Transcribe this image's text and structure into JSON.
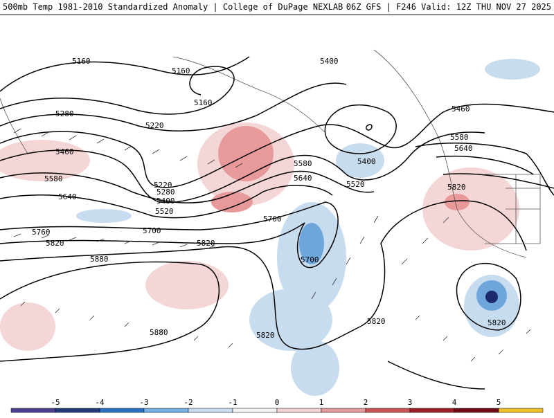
{
  "header": {
    "title_left": "500mb Temp 1981-2010 Standardized Anomaly | College of DuPage NEXLAB",
    "title_right": "06Z GFS | F246 Valid: 12Z THU NOV 27 2025"
  },
  "contours": {
    "color": "#000000",
    "labels": [
      "5160",
      "5160",
      "5160",
      "5220",
      "5280",
      "5220",
      "5280",
      "5400",
      "5520",
      "5460",
      "5580",
      "5640",
      "5760",
      "5700",
      "5820",
      "5820",
      "5880",
      "5880",
      "5400",
      "5400",
      "5520",
      "5580",
      "5640",
      "5760",
      "5700",
      "5820",
      "5820",
      "5460",
      "5580",
      "5640",
      "5820",
      "5820"
    ]
  },
  "anomaly_colors": {
    "neg_strong": "#2b5fb3",
    "neg_mid": "#6ea6dc",
    "neg_light": "#c8dcf0",
    "pos_light": "#f4d6d6",
    "pos_mid": "#e89a9a",
    "pos_strong": "#d96a6a",
    "core_dark": "#1a2a6b"
  },
  "colorbar": {
    "ticks": [
      "-5",
      "-4",
      "-3",
      "-2",
      "-1",
      "0",
      "1",
      "2",
      "3",
      "4",
      "5"
    ],
    "colors": [
      "#4b3f8f",
      "#233a7a",
      "#2d6fc2",
      "#79aee0",
      "#c7dcf1",
      "#f2f2f2",
      "#f1d1d1",
      "#e09a9a",
      "#c95353",
      "#9c1f25",
      "#6f0a12",
      "#f0c02a"
    ]
  }
}
